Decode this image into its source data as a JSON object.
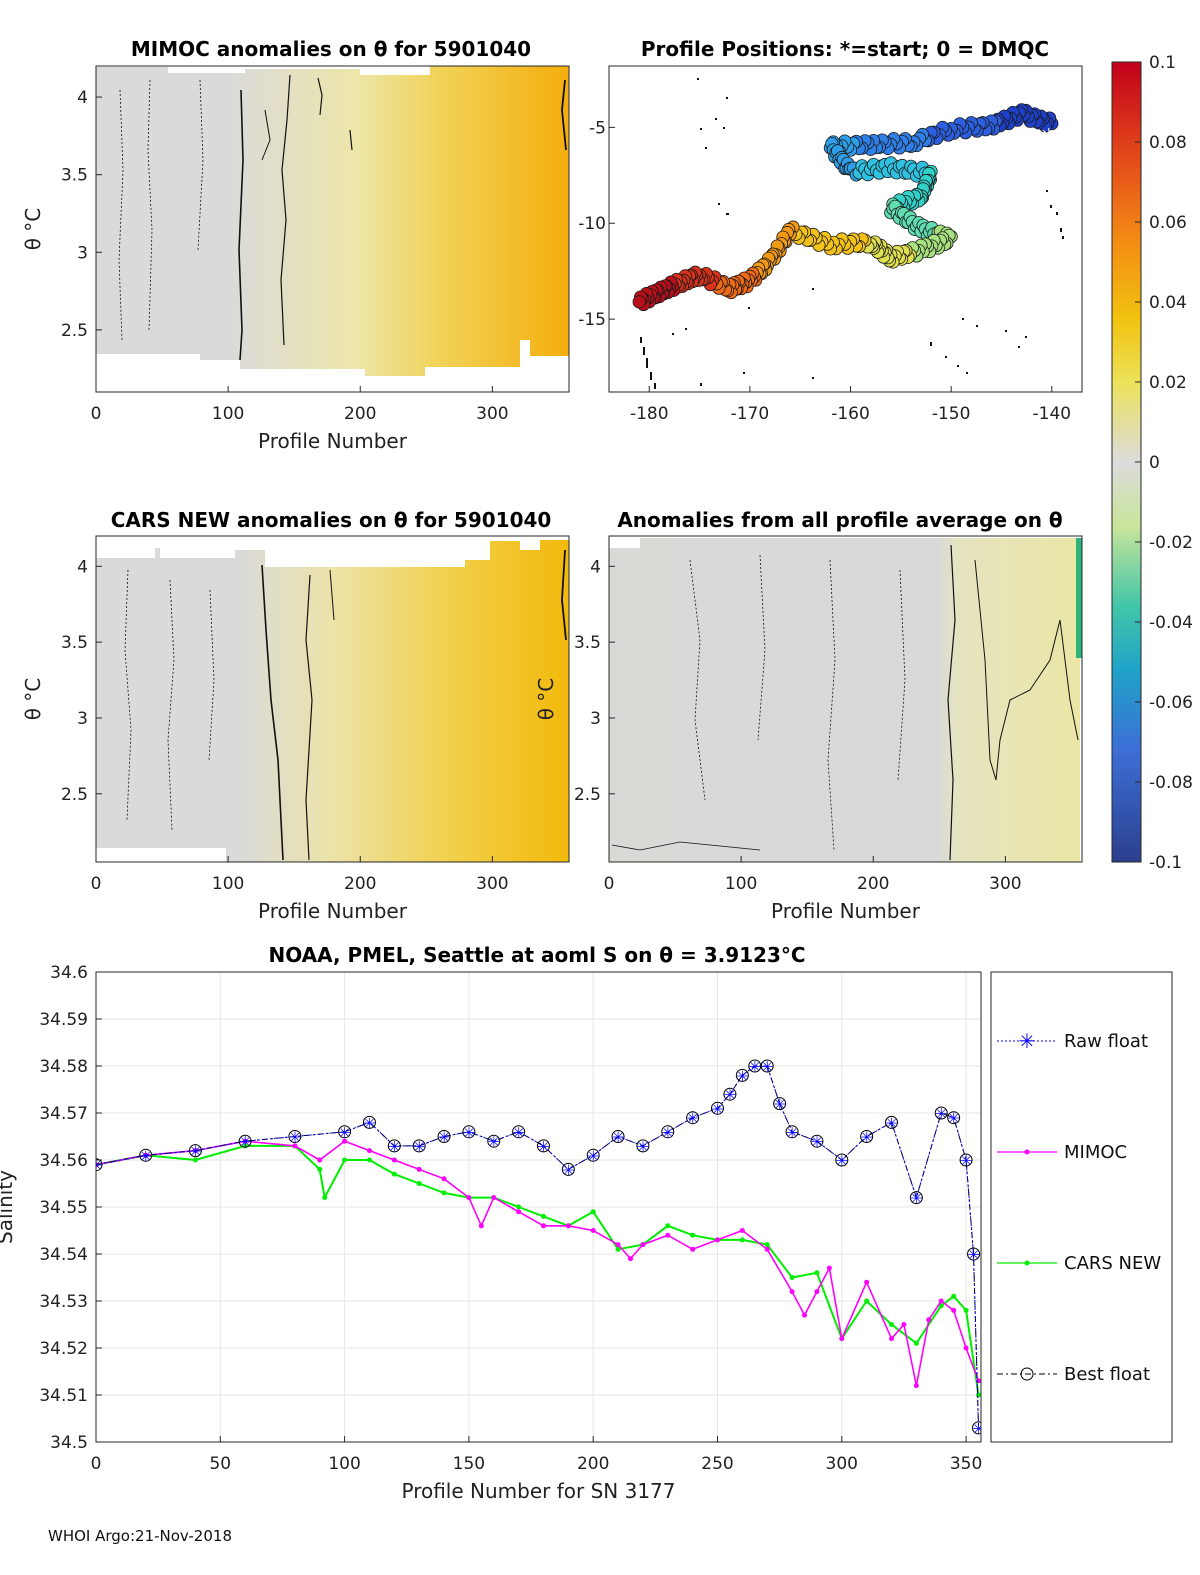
{
  "chart_data": [
    {
      "type": "heatmap",
      "title": "MIMOC anomalies on θ  for 5901040",
      "xlabel": "Profile Number",
      "ylabel": "θ °C",
      "xlim": [
        0,
        358
      ],
      "ylim": [
        2.1,
        4.2
      ],
      "xticks": [
        "0",
        "100",
        "200",
        "300"
      ],
      "yticks": [
        "2.5",
        "3",
        "3.5",
        "4"
      ],
      "anomaly_start": 0.0,
      "anomaly_end": 0.055
    },
    {
      "type": "scatter",
      "title": "Profile Positions: *=start; 0 = DMQC",
      "xlim": [
        -184,
        -137
      ],
      "ylim": [
        -18.8,
        -1.8
      ],
      "xticks": [
        "-180",
        "-170",
        "-160",
        "-150",
        "-140"
      ],
      "yticks": [
        "-5",
        "-10",
        "-15"
      ],
      "track": [
        {
          "lon": -140,
          "lat": -4.8
        },
        {
          "lon": -143,
          "lat": -4.3
        },
        {
          "lon": -146,
          "lat": -4.9
        },
        {
          "lon": -150,
          "lat": -5.1
        },
        {
          "lon": -154,
          "lat": -5.8
        },
        {
          "lon": -158,
          "lat": -5.9
        },
        {
          "lon": -162,
          "lat": -6.0
        },
        {
          "lon": -160,
          "lat": -7.3
        },
        {
          "lon": -156,
          "lat": -7.1
        },
        {
          "lon": -152,
          "lat": -7.4
        },
        {
          "lon": -153,
          "lat": -8.6
        },
        {
          "lon": -156,
          "lat": -9.2
        },
        {
          "lon": -153,
          "lat": -10.3
        },
        {
          "lon": -150,
          "lat": -10.8
        },
        {
          "lon": -153,
          "lat": -11.4
        },
        {
          "lon": -156,
          "lat": -11.8
        },
        {
          "lon": -158,
          "lat": -11.0
        },
        {
          "lon": -162,
          "lat": -11.1
        },
        {
          "lon": -166,
          "lat": -10.4
        },
        {
          "lon": -168,
          "lat": -12.0
        },
        {
          "lon": -170,
          "lat": -13.0
        },
        {
          "lon": -172,
          "lat": -13.4
        },
        {
          "lon": -175,
          "lat": -12.7
        },
        {
          "lon": -177,
          "lat": -13.1
        },
        {
          "lon": -179,
          "lat": -13.6
        },
        {
          "lon": -181,
          "lat": -14.1
        }
      ]
    },
    {
      "type": "heatmap",
      "title": "CARS NEW anomalies on θ for 5901040",
      "xlabel": "Profile Number",
      "ylabel": "θ °C",
      "xlim": [
        0,
        358
      ],
      "ylim": [
        2.05,
        4.2
      ],
      "xticks": [
        "0",
        "100",
        "200",
        "300"
      ],
      "yticks": [
        "2.5",
        "3",
        "3.5",
        "4"
      ],
      "anomaly_start": 0.0,
      "anomaly_end": 0.05
    },
    {
      "type": "heatmap",
      "title": "Anomalies from all profile average on θ",
      "xlabel": "Profile Number",
      "ylabel": "θ °C",
      "xlim": [
        0,
        358
      ],
      "ylim": [
        2.05,
        4.2
      ],
      "xticks": [
        "0",
        "100",
        "200",
        "300"
      ],
      "yticks": [
        "2.5",
        "3",
        "3.5",
        "4"
      ],
      "anomaly_start": 0.0,
      "anomaly_end": 0.018
    },
    {
      "type": "line",
      "title": "NOAA, PMEL, Seattle at aoml S on θ = 3.9123°C",
      "xlabel": "Profile Number for SN 3177",
      "ylabel": "Salinity",
      "xlim": [
        0,
        356
      ],
      "ylim": [
        34.5,
        34.6
      ],
      "xticks": [
        "0",
        "50",
        "100",
        "150",
        "200",
        "250",
        "300",
        "350"
      ],
      "yticks": [
        "34.5",
        "34.51",
        "34.52",
        "34.53",
        "34.54",
        "34.55",
        "34.56",
        "34.57",
        "34.58",
        "34.59",
        "34.6"
      ],
      "series": [
        {
          "name": "Raw float",
          "x": [
            0,
            20,
            40,
            60,
            80,
            100,
            110,
            120,
            130,
            140,
            150,
            160,
            170,
            180,
            190,
            200,
            210,
            220,
            230,
            240,
            250,
            255,
            260,
            265,
            270,
            275,
            280,
            290,
            300,
            310,
            320,
            330,
            340,
            345,
            350,
            353,
            355
          ],
          "values": [
            34.559,
            34.561,
            34.562,
            34.564,
            34.565,
            34.566,
            34.568,
            34.563,
            34.563,
            34.565,
            34.566,
            34.564,
            34.566,
            34.563,
            34.558,
            34.561,
            34.565,
            34.563,
            34.566,
            34.569,
            34.571,
            34.574,
            34.578,
            34.58,
            34.58,
            34.572,
            34.566,
            34.564,
            34.56,
            34.565,
            34.568,
            34.552,
            34.57,
            34.569,
            34.56,
            34.54,
            34.503
          ]
        },
        {
          "name": "MIMOC",
          "x": [
            0,
            20,
            40,
            60,
            80,
            90,
            100,
            110,
            120,
            130,
            140,
            150,
            155,
            160,
            170,
            180,
            190,
            200,
            210,
            215,
            220,
            230,
            240,
            250,
            260,
            270,
            280,
            285,
            290,
            295,
            300,
            310,
            320,
            325,
            330,
            335,
            340,
            345,
            350,
            355
          ],
          "values": [
            34.559,
            34.561,
            34.562,
            34.564,
            34.563,
            34.56,
            34.564,
            34.562,
            34.56,
            34.558,
            34.556,
            34.552,
            34.546,
            34.552,
            34.549,
            34.546,
            34.546,
            34.545,
            34.542,
            34.539,
            34.542,
            34.544,
            34.541,
            34.543,
            34.545,
            34.541,
            34.532,
            34.527,
            34.532,
            34.537,
            34.522,
            34.534,
            34.522,
            34.525,
            34.512,
            34.526,
            34.53,
            34.528,
            34.52,
            34.513
          ]
        },
        {
          "name": "CARS NEW",
          "x": [
            0,
            20,
            40,
            60,
            80,
            90,
            92,
            100,
            110,
            120,
            130,
            140,
            150,
            160,
            170,
            180,
            190,
            200,
            210,
            220,
            230,
            240,
            250,
            260,
            270,
            280,
            290,
            300,
            310,
            320,
            330,
            340,
            345,
            350,
            355
          ],
          "values": [
            34.559,
            34.561,
            34.56,
            34.563,
            34.563,
            34.558,
            34.552,
            34.56,
            34.56,
            34.557,
            34.555,
            34.553,
            34.552,
            34.552,
            34.55,
            34.548,
            34.546,
            34.549,
            34.541,
            34.542,
            34.546,
            34.544,
            34.543,
            34.543,
            34.542,
            34.535,
            34.536,
            34.522,
            34.53,
            34.525,
            34.521,
            34.529,
            34.531,
            34.528,
            34.51
          ]
        },
        {
          "name": "Best float",
          "x": [
            0,
            20,
            40,
            60,
            80,
            100,
            110,
            120,
            130,
            140,
            150,
            160,
            170,
            180,
            190,
            200,
            210,
            220,
            230,
            240,
            250,
            255,
            260,
            265,
            270,
            275,
            280,
            290,
            300,
            310,
            320,
            330,
            340,
            345,
            350,
            353,
            355
          ],
          "values": [
            34.559,
            34.561,
            34.562,
            34.564,
            34.565,
            34.566,
            34.568,
            34.563,
            34.563,
            34.565,
            34.566,
            34.564,
            34.566,
            34.563,
            34.558,
            34.561,
            34.565,
            34.563,
            34.566,
            34.569,
            34.571,
            34.574,
            34.578,
            34.58,
            34.58,
            34.572,
            34.566,
            34.564,
            34.56,
            34.565,
            34.568,
            34.552,
            34.57,
            34.569,
            34.56,
            34.54,
            34.503
          ]
        }
      ]
    }
  ],
  "colorbar": {
    "labels": [
      "0.1",
      "0.08",
      "0.06",
      "0.04",
      "0.02",
      "0",
      "-0.02",
      "-0.04",
      "-0.06",
      "-0.08",
      "-0.1"
    ]
  },
  "legend": {
    "items": [
      "Raw float",
      "MIMOC",
      "CARS NEW",
      "Best float"
    ]
  },
  "colors": {
    "raw": "#0000ff",
    "mimoc": "#ff00ff",
    "cars": "#00ee00",
    "best": "#000000",
    "grid": "#e6e6e6"
  },
  "footer": "WHOI Argo:21-Nov-2018"
}
